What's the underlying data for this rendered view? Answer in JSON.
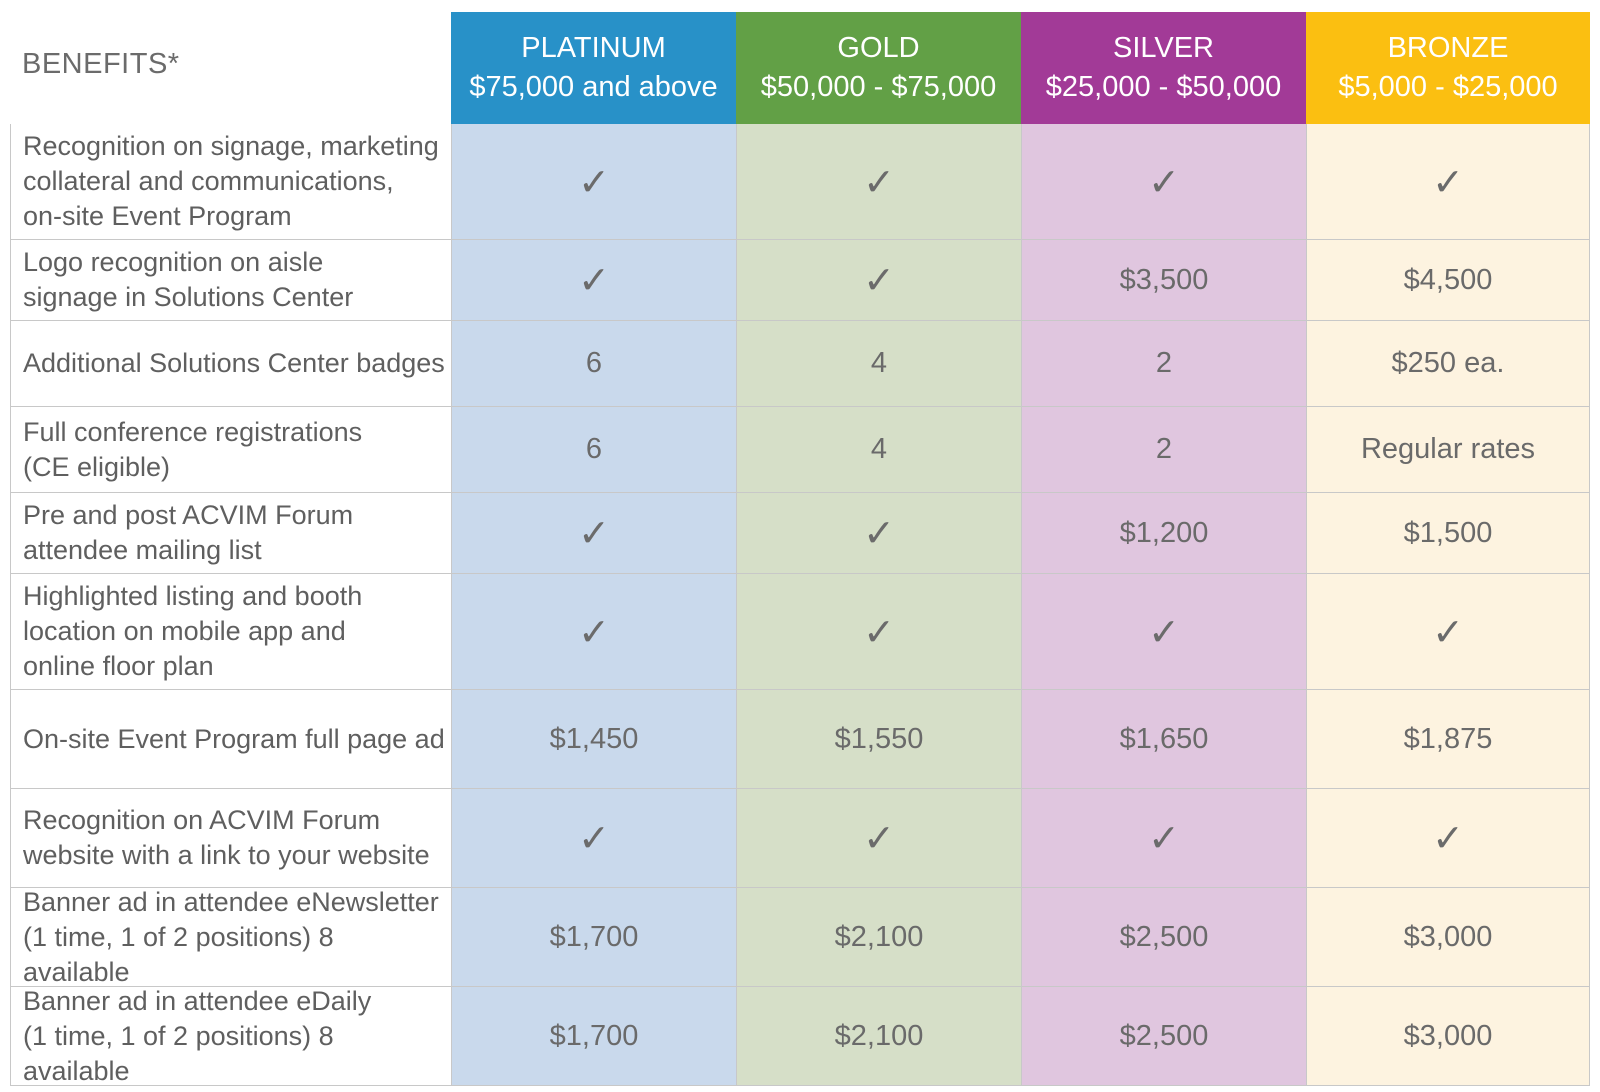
{
  "header": {
    "benefits_label": "BENEFITS*",
    "tiers": [
      {
        "name": "PLATINUM",
        "range": "$75,000 and above",
        "color": "#2891c8",
        "bg": "#c9d9ec"
      },
      {
        "name": "GOLD",
        "range": "$50,000 - $75,000",
        "color": "#62a046",
        "bg": "#d6dfc8"
      },
      {
        "name": "SILVER",
        "range": "$25,000 - $50,000",
        "color": "#a23a97",
        "bg": "#e0c6df"
      },
      {
        "name": "BRONZE",
        "range": "$5,000 - $25,000",
        "color": "#fbbf11",
        "bg": "#fdf3e0"
      }
    ]
  },
  "rows": [
    {
      "benefit": "Recognition on signage, marketing\ncollateral and communications,\non-site Event Program",
      "values": [
        "check-icon",
        "check-icon",
        "check-icon",
        "check-icon"
      ]
    },
    {
      "benefit": "Logo recognition on aisle\nsignage in Solutions Center",
      "values": [
        "check-icon",
        "check-icon",
        "$3,500",
        "$4,500"
      ]
    },
    {
      "benefit": "Additional Solutions Center badges",
      "values": [
        "6",
        "4",
        "2",
        "$250 ea."
      ]
    },
    {
      "benefit": "Full conference registrations\n(CE eligible)",
      "values": [
        "6",
        "4",
        "2",
        "Regular rates"
      ]
    },
    {
      "benefit": "Pre and post ACVIM Forum\nattendee mailing list",
      "values": [
        "check-icon",
        "check-icon",
        "$1,200",
        "$1,500"
      ]
    },
    {
      "benefit": "Highlighted listing and booth\nlocation on mobile app and\nonline floor plan",
      "values": [
        "check-icon",
        "check-icon",
        "check-icon",
        "check-icon"
      ]
    },
    {
      "benefit": "On-site Event Program full page ad",
      "values": [
        "$1,450",
        "$1,550",
        "$1,650",
        "$1,875"
      ]
    },
    {
      "benefit": "Recognition on ACVIM Forum\nwebsite with a link to your website",
      "values": [
        "check-icon",
        "check-icon",
        "check-icon",
        "check-icon"
      ]
    },
    {
      "benefit": "Banner ad in attendee eNewsletter\n(1 time, 1 of 2 positions) 8 available",
      "values": [
        "$1,700",
        "$2,100",
        "$2,500",
        "$3,000"
      ]
    },
    {
      "benefit": "Banner ad in attendee eDaily\n(1 time, 1 of 2 positions) 8 available",
      "values": [
        "$1,700",
        "$2,100",
        "$2,500",
        "$3,000"
      ]
    }
  ]
}
